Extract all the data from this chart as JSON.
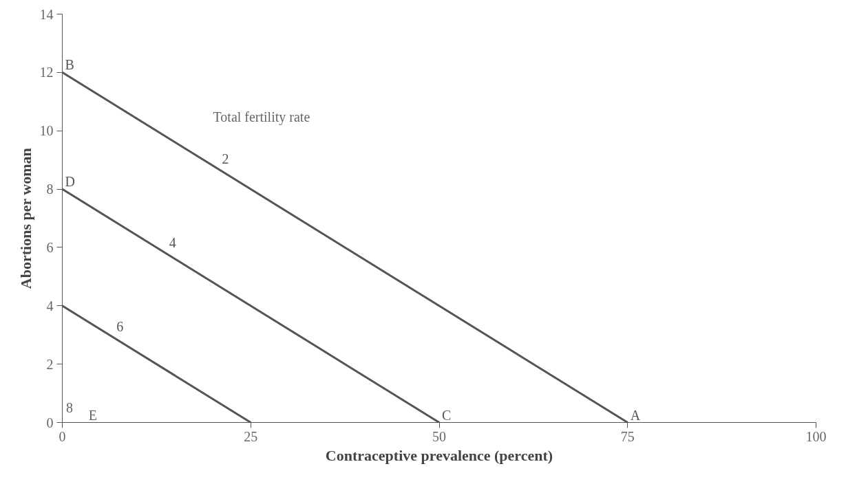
{
  "chart_data": {
    "type": "line",
    "xlabel": "Contraceptive prevalence (percent)",
    "ylabel": "Abortions per woman",
    "series": [
      {
        "name": "2",
        "color": "#555555",
        "x": [
          0,
          75
        ],
        "values": [
          12,
          0
        ]
      },
      {
        "name": "4",
        "color": "#555555",
        "x": [
          0,
          50
        ],
        "values": [
          8,
          0
        ]
      },
      {
        "name": "6",
        "color": "#555555",
        "x": [
          0,
          25
        ],
        "values": [
          4,
          0
        ]
      }
    ],
    "annotations": [
      {
        "text": "B",
        "x": 0,
        "y": 12
      },
      {
        "text": "D",
        "x": 0,
        "y": 8
      },
      "E",
      "8",
      {
        "text": "C",
        "x": 50,
        "y": 0
      },
      {
        "text": "A",
        "x": 75,
        "y": 0
      },
      "Total fertility rate"
    ],
    "xlim": [
      0,
      100
    ],
    "xticks": [
      0,
      25,
      50,
      75,
      100
    ],
    "ylim": [
      0,
      14
    ],
    "yticks": [
      0,
      2,
      4,
      6,
      8,
      10,
      12,
      14
    ],
    "grid": false,
    "legend": false,
    "marker": "none",
    "line_style": "solid"
  }
}
